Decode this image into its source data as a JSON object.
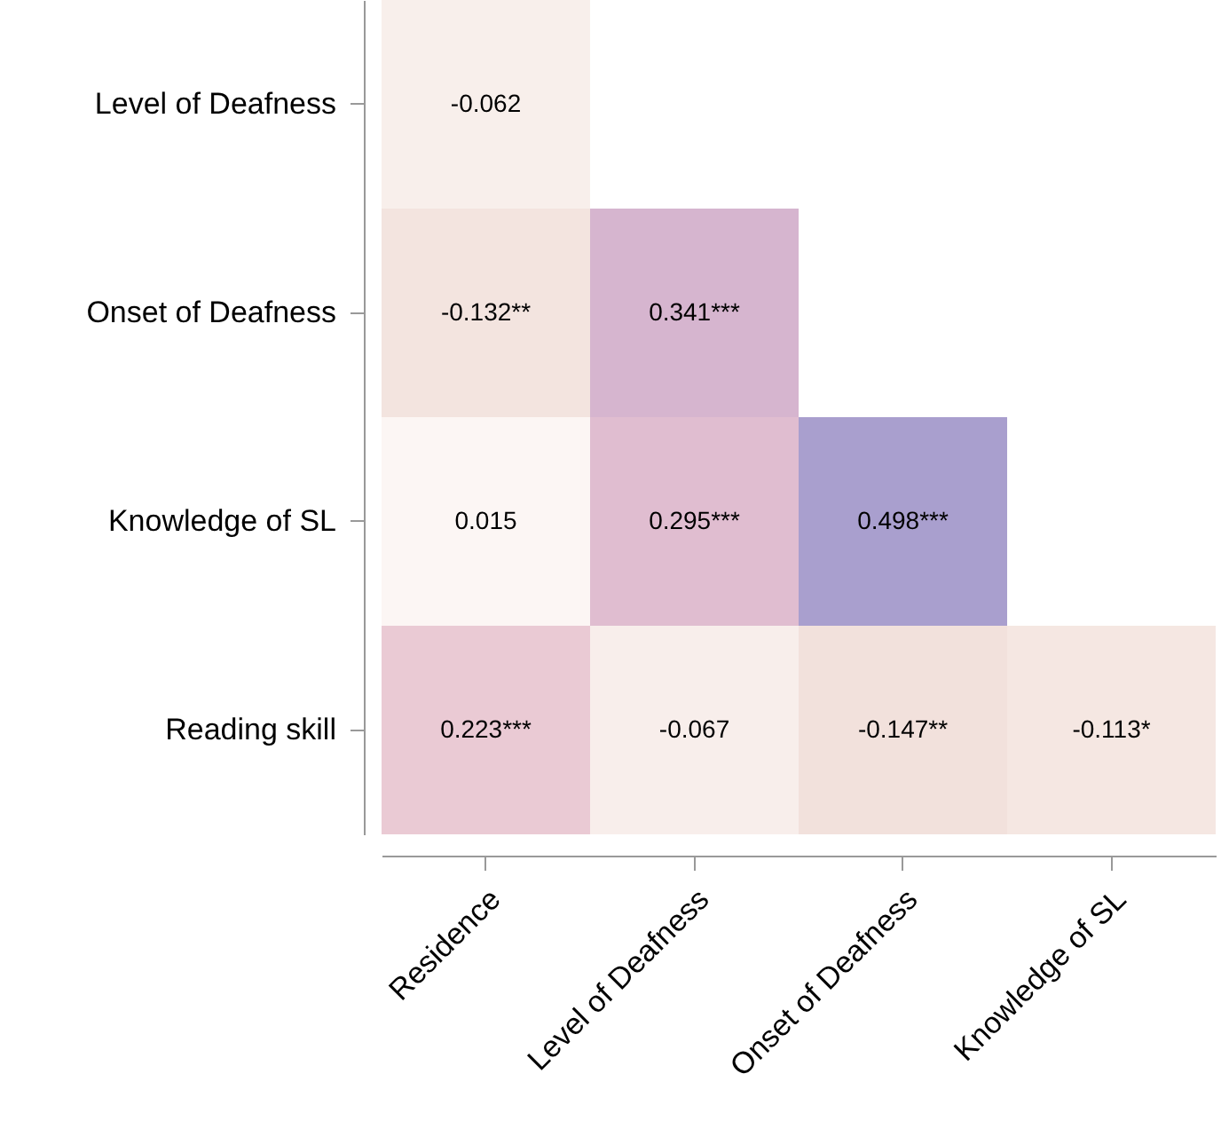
{
  "chart_data": {
    "type": "heatmap",
    "categories": [
      "Residence",
      "Level of Deafness",
      "Onset of Deafness",
      "Knowledge of SL"
    ],
    "y_categories": [
      "Level of Deafness",
      "Onset of Deafness",
      "Knowledge of SL",
      "Reading skill"
    ],
    "cells": [
      [
        -0.062,
        null,
        null,
        null
      ],
      [
        -0.132,
        0.341,
        null,
        null
      ],
      [
        0.015,
        0.295,
        0.498,
        null
      ],
      [
        0.223,
        -0.067,
        -0.147,
        -0.113
      ]
    ],
    "cell_labels": [
      [
        "-0.062",
        null,
        null,
        null
      ],
      [
        "-0.132**",
        "0.341***",
        null,
        null
      ],
      [
        "0.015",
        "0.295***",
        "0.498***",
        null
      ],
      [
        "0.223***",
        "-0.067",
        "-0.147**",
        "-0.113*"
      ]
    ]
  }
}
